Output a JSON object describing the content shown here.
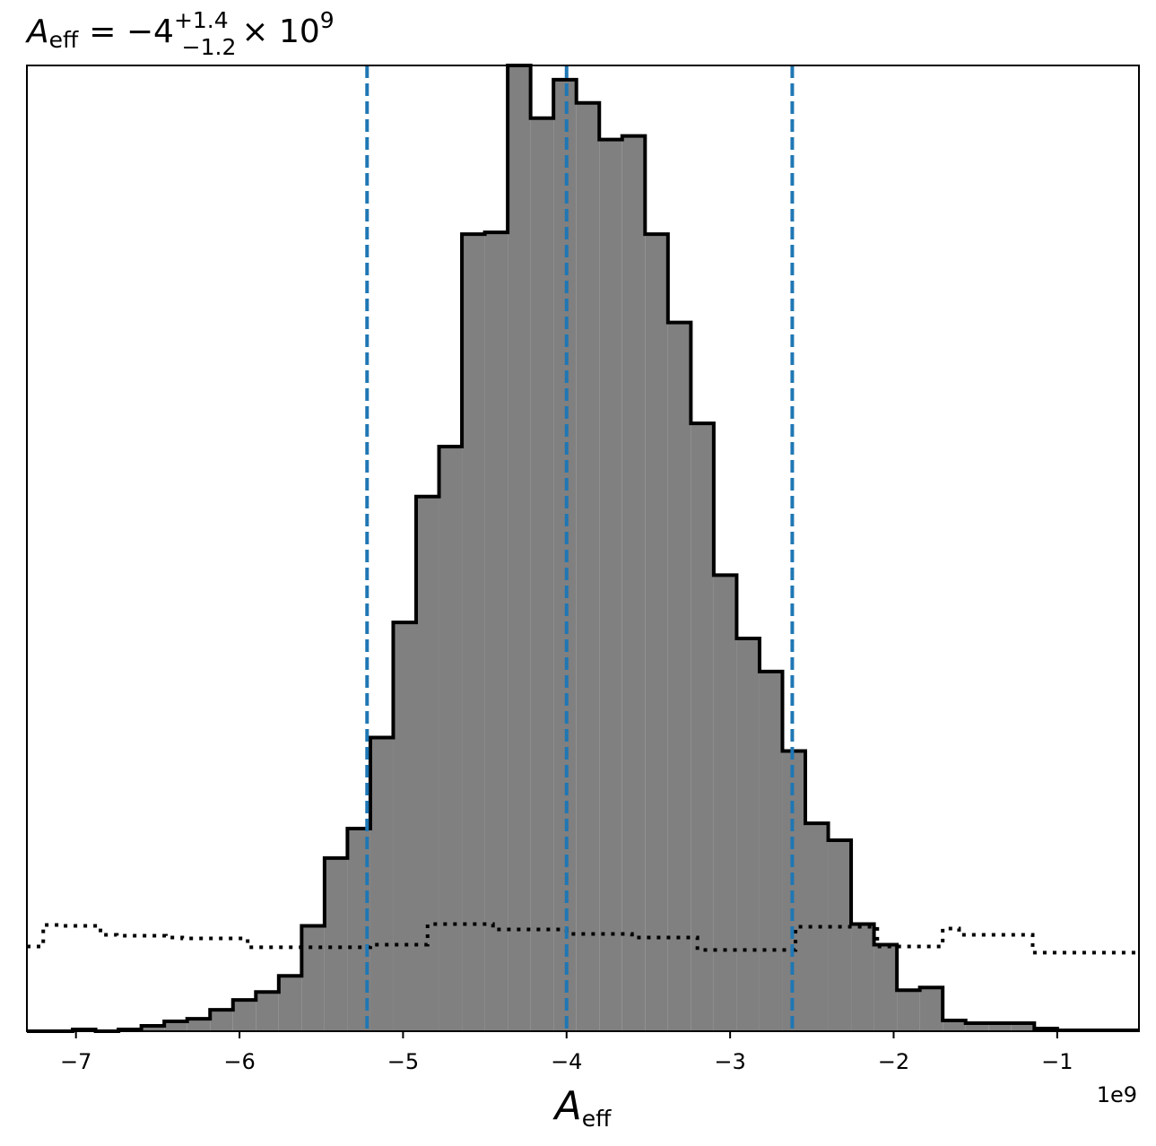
{
  "chart_data": {
    "type": "histogram",
    "title": {
      "symbol": "A",
      "symbol_sub": "eff",
      "prefix": "= −4",
      "sup": "+1.4",
      "sub": "−1.2",
      "suffix": "× 10",
      "exponent": "9"
    },
    "xlabel": {
      "symbol": "A",
      "sub": "eff"
    },
    "offset_text": "1e9",
    "xlim": [
      -7.3,
      -0.5
    ],
    "ylim": [
      0,
      1082
    ],
    "grid": false,
    "legend": "none",
    "xticks": [
      {
        "value": -7,
        "label": "−7"
      },
      {
        "value": -6,
        "label": "−6"
      },
      {
        "value": -5,
        "label": "−5"
      },
      {
        "value": -4,
        "label": "−4"
      },
      {
        "value": -3,
        "label": "−3"
      },
      {
        "value": -2,
        "label": "−2"
      },
      {
        "value": -1,
        "label": "−1"
      }
    ],
    "posterior": {
      "style": "filled step",
      "fill_color": "#808080",
      "edge_color": "#000000",
      "bin_edges": [
        -7.3,
        -7.16,
        -7.02,
        -6.88,
        -6.74,
        -6.6,
        -6.46,
        -6.32,
        -6.18,
        -6.04,
        -5.9,
        -5.76,
        -5.62,
        -5.48,
        -5.34,
        -5.2,
        -5.06,
        -4.92,
        -4.78,
        -4.64,
        -4.5,
        -4.36,
        -4.22,
        -4.08,
        -3.94,
        -3.8,
        -3.66,
        -3.52,
        -3.38,
        -3.24,
        -3.1,
        -2.96,
        -2.82,
        -2.68,
        -2.54,
        -2.4,
        -2.26,
        -2.12,
        -1.98,
        -1.84,
        -1.7,
        -1.56,
        -1.42,
        -1.28,
        -1.14,
        -1.0,
        -0.86,
        -0.72,
        -0.58,
        -0.5
      ],
      "counts": [
        0,
        0,
        2,
        0,
        2,
        6,
        11,
        14,
        24,
        35,
        44,
        62,
        118,
        194,
        227,
        329,
        458,
        599,
        655,
        893,
        895,
        1082,
        1023,
        1066,
        1040,
        999,
        1003,
        893,
        794,
        681,
        511,
        440,
        403,
        314,
        233,
        214,
        120,
        97,
        46,
        49,
        12,
        9,
        9,
        9,
        3,
        1,
        1,
        1,
        1
      ]
    },
    "prior": {
      "style": "dotted step",
      "color": "#000000",
      "bin_edges": [
        -7.3,
        -7.2,
        -7.1,
        -6.85,
        -6.75,
        -6.45,
        -6.35,
        -5.95,
        -5.65,
        -5.2,
        -4.85,
        -4.45,
        -4.0,
        -3.6,
        -3.2,
        -2.6,
        -2.45,
        -2.1,
        -1.7,
        -1.6,
        -1.2,
        -1.15,
        -0.5
      ],
      "counts": [
        95,
        119,
        118,
        108,
        107,
        105,
        104,
        94,
        94,
        97,
        120,
        114,
        109,
        105,
        91,
        117,
        117,
        95,
        115,
        108,
        108,
        88,
        88
      ]
    },
    "reference_lines": {
      "style": "dashed vertical",
      "color": "#1f77b4",
      "values": [
        -5.22,
        -4.0,
        -2.62
      ]
    }
  }
}
